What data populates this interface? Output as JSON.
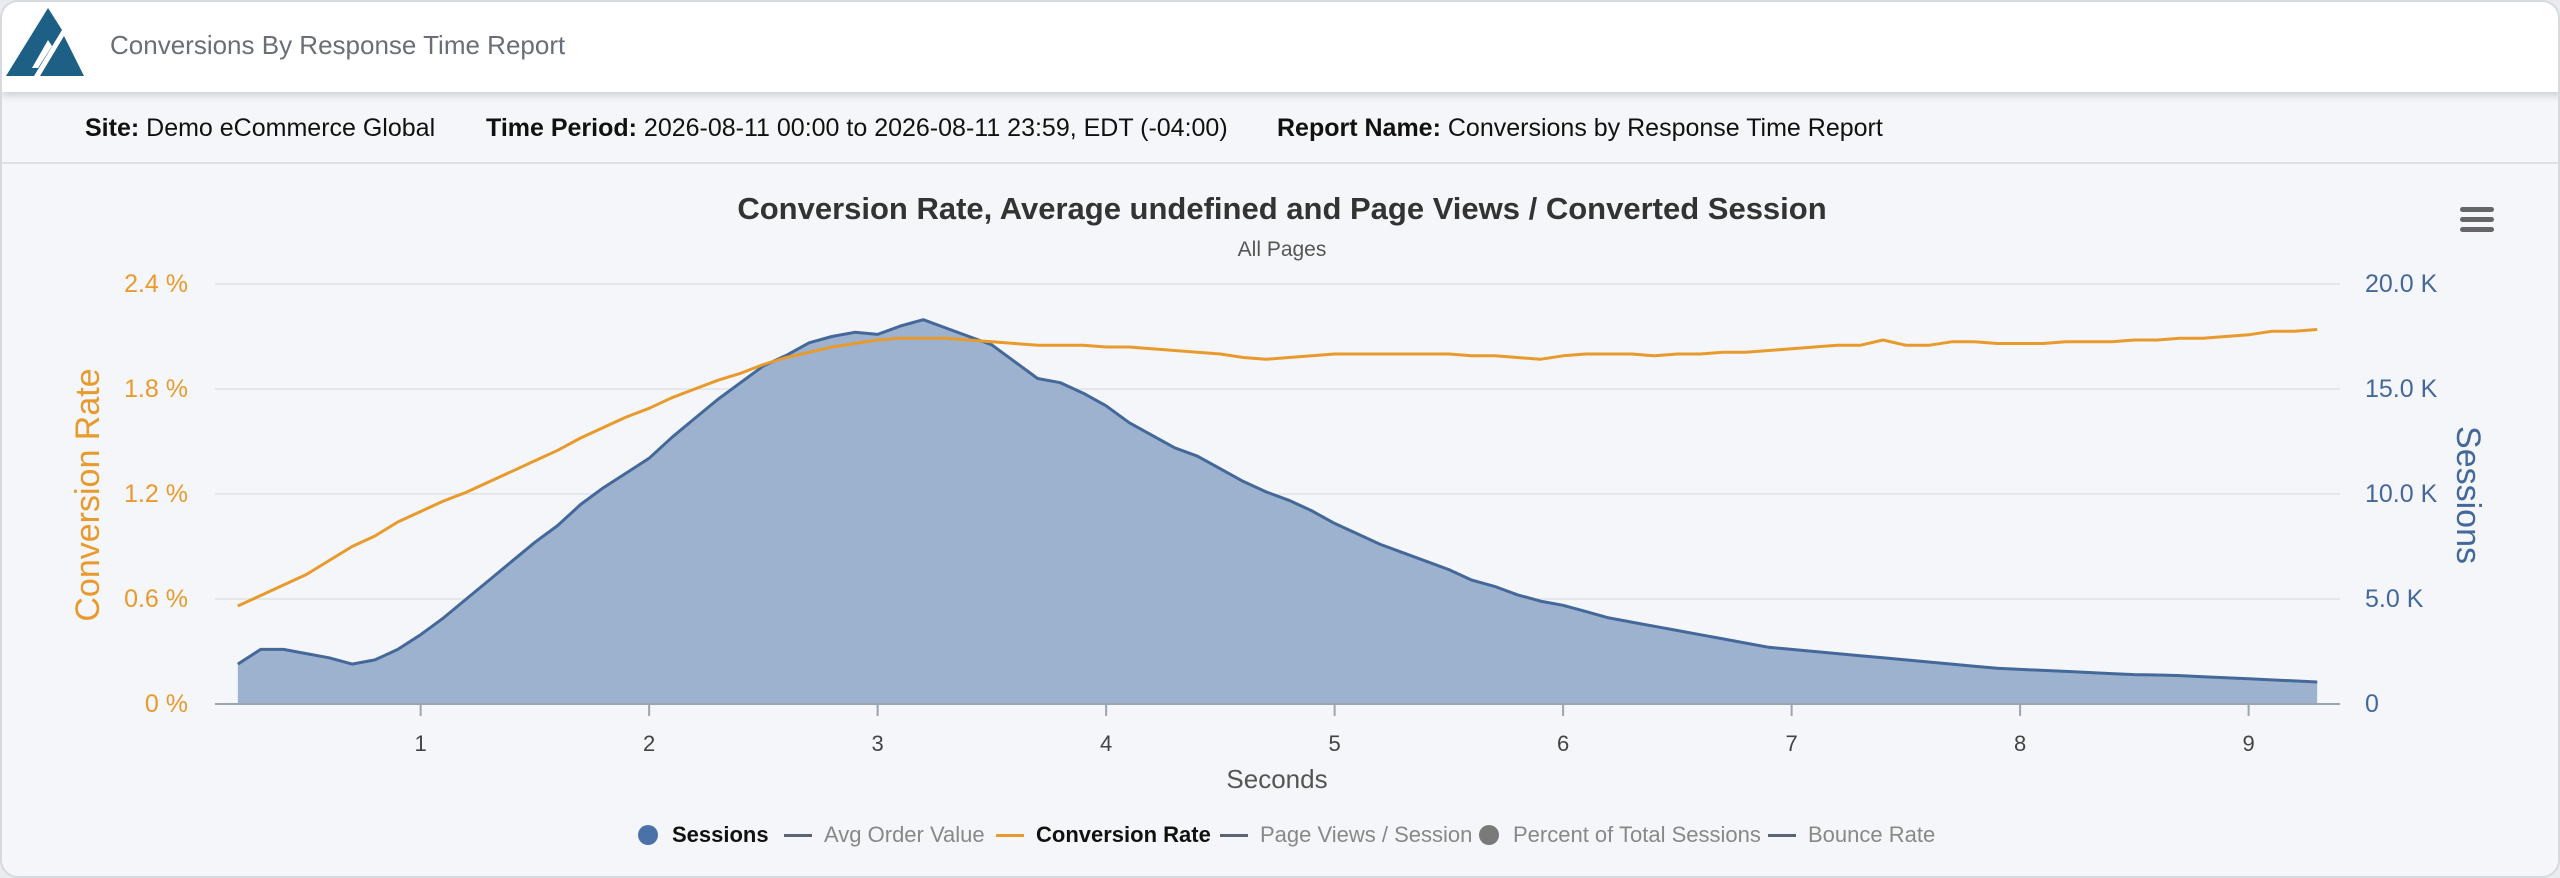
{
  "app": {
    "title": "Conversions By Response Time Report"
  },
  "info": {
    "site_label": "Site:",
    "site_value": "Demo eCommerce Global",
    "period_label": "Time Period:",
    "period_value": "2026-08-11 00:00 to 2026-08-11 23:59, EDT (-04:00)",
    "report_label": "Report Name:",
    "report_value": "Conversions by Response Time Report"
  },
  "colors": {
    "orange": "#e99a2c",
    "blue": "#44689a",
    "area_fill": "#9db2cf",
    "legend_gray": "#8a8a8a"
  },
  "icons": {
    "menu": "hamburger-menu-icon",
    "logo": "triangle-logo-icon"
  },
  "chart_data": {
    "type": "area",
    "title": "Conversion Rate, Average undefined and Page Views / Converted Session",
    "subtitle": "All Pages",
    "xlabel": "Seconds",
    "xlim": [
      0.1,
      9.4
    ],
    "x_ticks": [
      "1",
      "2",
      "3",
      "4",
      "5",
      "6",
      "7",
      "8",
      "9"
    ],
    "y_left": {
      "label": "Conversion Rate",
      "ticks": [
        "0 %",
        "0.6 %",
        "1.2 %",
        "1.8 %",
        "2.4 %"
      ],
      "lim": [
        0,
        2.4
      ],
      "unit": "%"
    },
    "y_right": {
      "label": "Sessions",
      "ticks": [
        "0",
        "5.0 K",
        "10.0 K",
        "15.0 K",
        "20.0 K"
      ],
      "lim": [
        0,
        20000
      ]
    },
    "grid": true,
    "legend_position": "bottom",
    "legend": [
      {
        "name": "Sessions",
        "symbol": "dot",
        "color": "#4a72a8",
        "active": true
      },
      {
        "name": "Avg Order Value",
        "symbol": "line",
        "color": "#5a6472",
        "active": false
      },
      {
        "name": "Conversion Rate",
        "symbol": "line",
        "color": "#e99a2c",
        "active": true
      },
      {
        "name": "Page Views / Session",
        "symbol": "line",
        "color": "#5a6472",
        "active": false
      },
      {
        "name": "Percent of Total Sessions",
        "symbol": "dot",
        "color": "#7a7a7a",
        "active": false
      },
      {
        "name": "Bounce Rate",
        "symbol": "line",
        "color": "#5a6472",
        "active": false
      }
    ],
    "series": [
      {
        "name": "Sessions",
        "axis": "right",
        "type": "area",
        "x": [
          0.2,
          0.3,
          0.4,
          0.5,
          0.6,
          0.7,
          0.8,
          0.9,
          1.0,
          1.1,
          1.2,
          1.3,
          1.4,
          1.5,
          1.6,
          1.7,
          1.8,
          1.9,
          2.0,
          2.1,
          2.2,
          2.3,
          2.4,
          2.5,
          2.6,
          2.7,
          2.8,
          2.9,
          3.0,
          3.1,
          3.2,
          3.3,
          3.4,
          3.5,
          3.6,
          3.7,
          3.8,
          3.9,
          4.0,
          4.1,
          4.2,
          4.3,
          4.4,
          4.5,
          4.6,
          4.7,
          4.8,
          4.9,
          5.0,
          5.1,
          5.2,
          5.3,
          5.4,
          5.5,
          5.6,
          5.7,
          5.8,
          5.9,
          6.0,
          6.1,
          6.2,
          6.3,
          6.4,
          6.5,
          6.6,
          6.7,
          6.8,
          6.9,
          7.0,
          7.1,
          7.2,
          7.3,
          7.4,
          7.5,
          7.6,
          7.7,
          7.8,
          7.9,
          8.0,
          8.1,
          8.2,
          8.3,
          8.4,
          8.5,
          8.6,
          8.7,
          8.8,
          8.9,
          9.0,
          9.1,
          9.2,
          9.3
        ],
        "values": [
          1900,
          2600,
          2600,
          2400,
          2200,
          1900,
          2100,
          2600,
          3300,
          4100,
          5000,
          5900,
          6800,
          7700,
          8500,
          9500,
          10300,
          11000,
          11700,
          12700,
          13600,
          14500,
          15300,
          16100,
          16600,
          17200,
          17500,
          17700,
          17600,
          18000,
          18300,
          17900,
          17500,
          17100,
          16300,
          15500,
          15300,
          14800,
          14200,
          13400,
          12800,
          12200,
          11800,
          11200,
          10600,
          10100,
          9700,
          9200,
          8600,
          8100,
          7600,
          7200,
          6800,
          6400,
          5900,
          5600,
          5200,
          4900,
          4700,
          4400,
          4100,
          3900,
          3700,
          3500,
          3300,
          3100,
          2900,
          2700,
          2600,
          2500,
          2400,
          2300,
          2200,
          2100,
          2000,
          1900,
          1800,
          1700,
          1650,
          1600,
          1550,
          1500,
          1450,
          1400,
          1380,
          1350,
          1300,
          1250,
          1200,
          1150,
          1100,
          1050
        ]
      },
      {
        "name": "Conversion Rate",
        "axis": "left",
        "type": "line",
        "x": [
          0.2,
          0.3,
          0.4,
          0.5,
          0.6,
          0.7,
          0.8,
          0.9,
          1.0,
          1.1,
          1.2,
          1.3,
          1.4,
          1.5,
          1.6,
          1.7,
          1.8,
          1.9,
          2.0,
          2.1,
          2.2,
          2.3,
          2.4,
          2.5,
          2.6,
          2.7,
          2.8,
          2.9,
          3.0,
          3.1,
          3.2,
          3.3,
          3.4,
          3.5,
          3.6,
          3.7,
          3.8,
          3.9,
          4.0,
          4.1,
          4.2,
          4.3,
          4.4,
          4.5,
          4.6,
          4.7,
          4.8,
          4.9,
          5.0,
          5.1,
          5.2,
          5.3,
          5.4,
          5.5,
          5.6,
          5.7,
          5.8,
          5.9,
          6.0,
          6.1,
          6.2,
          6.3,
          6.4,
          6.5,
          6.6,
          6.7,
          6.8,
          6.9,
          7.0,
          7.1,
          7.2,
          7.3,
          7.4,
          7.5,
          7.6,
          7.7,
          7.8,
          7.9,
          8.0,
          8.1,
          8.2,
          8.3,
          8.4,
          8.5,
          8.6,
          8.7,
          8.8,
          8.9,
          9.0,
          9.1,
          9.2,
          9.3
        ],
        "values": [
          0.56,
          0.62,
          0.68,
          0.74,
          0.82,
          0.9,
          0.96,
          1.04,
          1.1,
          1.16,
          1.21,
          1.27,
          1.33,
          1.39,
          1.45,
          1.52,
          1.58,
          1.64,
          1.69,
          1.75,
          1.8,
          1.85,
          1.89,
          1.94,
          1.98,
          2.01,
          2.04,
          2.06,
          2.08,
          2.09,
          2.09,
          2.09,
          2.08,
          2.07,
          2.06,
          2.05,
          2.05,
          2.05,
          2.04,
          2.04,
          2.03,
          2.02,
          2.01,
          2.0,
          1.98,
          1.97,
          1.98,
          1.99,
          2.0,
          2.0,
          2.0,
          2.0,
          2.0,
          2.0,
          1.99,
          1.99,
          1.98,
          1.97,
          1.99,
          2.0,
          2.0,
          2.0,
          1.99,
          2.0,
          2.0,
          2.01,
          2.01,
          2.02,
          2.03,
          2.04,
          2.05,
          2.05,
          2.08,
          2.05,
          2.05,
          2.07,
          2.07,
          2.06,
          2.06,
          2.06,
          2.07,
          2.07,
          2.07,
          2.08,
          2.08,
          2.09,
          2.09,
          2.1,
          2.11,
          2.13,
          2.13,
          2.14
        ]
      }
    ]
  }
}
